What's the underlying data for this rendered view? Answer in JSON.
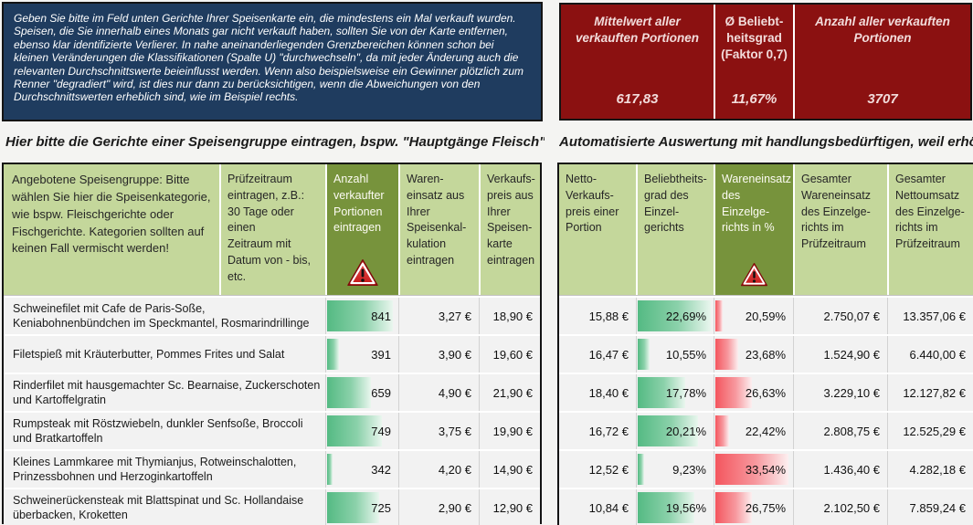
{
  "instructions_text": "Geben Sie bitte im Feld unten Gerichte Ihrer Speisenkarte ein, die mindestens ein Mal verkauft wurden. Speisen, die Sie innerhalb eines Monats gar nicht verkauft haben, sollten Sie von der Karte entfernen, ebenso klar identifizierte Verlierer. In nahe aneinanderliegenden Grenzbereichen können schon bei kleinen Veränderungen die Klassifikationen (Spalte U) \"durchwechseln\", da mit jeder Änderung auch die relevanten Durchschnittswerte beieinflusst werden. Wenn also beispielsweise ein Gewinner plötzlich zum Renner \"degradiert\" wird, ist dies nur dann zu berücksichtigen, wenn die Abweichungen von den Durchschnittswerten erheblich sind, wie im Beispiel rechts.",
  "summary": {
    "cells": [
      {
        "label": "Mittelwert aller\nverkauften Portionen",
        "value": "617,83"
      },
      {
        "label": "Ø Beliebt-\nheitsgrad\n(Faktor 0,7)",
        "value": "11,67%"
      },
      {
        "label": "Anzahl aller verkauften\nPortionen",
        "value": "3707"
      }
    ]
  },
  "left": {
    "heading": "Hier bitte die Gerichte einer Speisengruppe eintragen, bspw. \"Hauptgänge Fleisch\"",
    "headers": {
      "speisengruppe": "Angebotene Speisengruppe: Bitte wählen Sie hier die Speisenkategorie, wie bspw. Fleischgerichte oder Fischgerichte. Kategorien sollten auf keinen Fall vermischt werden!",
      "pruefzeitraum": "Prüfzeitraum\neintragen, z.B.:\n30 Tage oder einen\nZeitraum mit\nDatum von - bis,\netc.",
      "anzahl": "Anzahl\nverkaufter\nPortionen\neintragen",
      "wareneinsatz": "Waren-\neinsatz aus\nIhrer\nSpeisenkal-\nkulation\neintragen",
      "verkaufspreis": "Verkaufs-\npreis aus\nIhrer\nSpeisen-\nkarte\neintragen"
    },
    "rows": [
      {
        "dish": "Schweinefilet mit Cafe de Paris-Soße, Keniabohnenbündchen im Speckmantel, Rosmarindrillinge",
        "portions": "841",
        "bar_pct": 91,
        "einsatz": "3,27 €",
        "preis": "18,90 €"
      },
      {
        "dish": "Filetspieß mit Kräuterbutter, Pommes Frites und Salat",
        "portions": "391",
        "bar_pct": 16,
        "einsatz": "3,90 €",
        "preis": "19,60 €"
      },
      {
        "dish": "Rinderfilet mit hausgemachter Sc. Bearnaise, Zuckerschoten und Kartoffelgratin",
        "portions": "659",
        "bar_pct": 61,
        "einsatz": "4,90 €",
        "preis": "21,90 €"
      },
      {
        "dish": "Rumpsteak mit Röstzwiebeln, dunkler Senfsoße, Broccoli und Bratkartoffeln",
        "portions": "749",
        "bar_pct": 76,
        "einsatz": "3,75 €",
        "preis": "19,90 €"
      },
      {
        "dish": "Kleines Lammkaree mit Thymianjus, Rotweinschalotten, Prinzessbohnen und Herzoginkartoffeln",
        "portions": "342",
        "bar_pct": 8,
        "einsatz": "4,20 €",
        "preis": "14,90 €"
      },
      {
        "dish": "Schweinerückensteak mit Blattspinat und Sc. Hollandaise überbacken, Kroketten",
        "portions": "725",
        "bar_pct": 72,
        "einsatz": "2,90 €",
        "preis": "12,90 €"
      }
    ]
  },
  "right": {
    "heading": "Automatisierte Auswertung mit handlungsbedürftigen, weil erhöhten A",
    "headers": {
      "netto_preis": "Netto-\nVerkaufs-\npreis einer\nPortion",
      "beliebtheitsgrad": "Beliebtheits-\ngrad des\nEinzel-\ngerichts",
      "wareneinsatz_pct": "Wareneinsatz\ndes Einzelge-\nrichts in %",
      "gesamt_wareneinsatz": "Gesamter\nWareneinsatz\ndes Einzelge-\nrichts im\nPrüfzeitraum",
      "gesamt_nettoumsatz": "Gesamter\nNettoumsatz\ndes Einzelge-\nrichts im\nPrüfzeitraum"
    },
    "rows": [
      {
        "netto": "15,88 €",
        "beliebt": "22,69%",
        "beliebt_bar_pct": 95,
        "einsatz_pct": "20,59%",
        "einsatz_bar_pct": 9,
        "gesamt_we": "2.750,07 €",
        "gesamt_umsatz": "13.357,06 €"
      },
      {
        "netto": "16,47 €",
        "beliebt": "10,55%",
        "beliebt_bar_pct": 15,
        "einsatz_pct": "23,68%",
        "einsatz_bar_pct": 29,
        "gesamt_we": "1.524,90 €",
        "gesamt_umsatz": "6.440,00 €"
      },
      {
        "netto": "18,40 €",
        "beliebt": "17,78%",
        "beliebt_bar_pct": 62,
        "einsatz_pct": "26,63%",
        "einsatz_bar_pct": 47,
        "gesamt_we": "3.229,10 €",
        "gesamt_umsatz": "12.127,82 €"
      },
      {
        "netto": "16,72 €",
        "beliebt": "20,21%",
        "beliebt_bar_pct": 78,
        "einsatz_pct": "22,42%",
        "einsatz_bar_pct": 18,
        "gesamt_we": "2.808,75 €",
        "gesamt_umsatz": "12.525,29 €"
      },
      {
        "netto": "12,52 €",
        "beliebt": "9,23%",
        "beliebt_bar_pct": 8,
        "einsatz_pct": "33,54%",
        "einsatz_bar_pct": 93,
        "gesamt_we": "1.436,40 €",
        "gesamt_umsatz": "4.282,18 €"
      },
      {
        "netto": "10,84 €",
        "beliebt": "19,56%",
        "beliebt_bar_pct": 74,
        "einsatz_pct": "26,75%",
        "einsatz_bar_pct": 47,
        "gesamt_we": "2.102,50 €",
        "gesamt_umsatz": "7.859,24 €"
      }
    ]
  },
  "icons": {
    "portions_header_icon": "warning-icon",
    "wareneinsatz_header_icon": "warning-icon"
  },
  "colors": {
    "instruction_bg": "#1F3C5F",
    "summary_bg": "#8B1111",
    "summary_text": "#F2DCDB",
    "header_light_green": "#C4D79B",
    "header_dark_green": "#77933C",
    "row_bg": "#F2F2F2",
    "databar_green": "#54BA83",
    "databar_red": "#F4565E"
  }
}
